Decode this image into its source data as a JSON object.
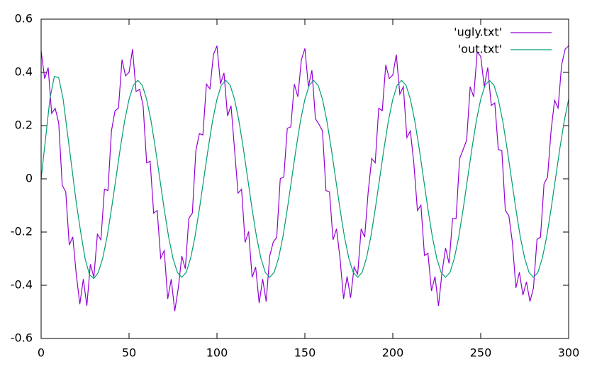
{
  "chart_data": {
    "type": "line",
    "xlim": [
      0,
      300
    ],
    "ylim": [
      -0.6,
      0.6
    ],
    "xticks": [
      0,
      50,
      100,
      150,
      200,
      250,
      300
    ],
    "yticks": [
      -0.6,
      -0.4,
      -0.2,
      0,
      0.2,
      0.4,
      0.6
    ],
    "grid": false,
    "legend": "top-right",
    "series": [
      {
        "name": "'ugly.txt'",
        "color": "#9400d3",
        "x": [
          0,
          2,
          4,
          6,
          8,
          10,
          12,
          14,
          16,
          18,
          20,
          22,
          24,
          26,
          28,
          30,
          32,
          34,
          36,
          38,
          40,
          42,
          44,
          46,
          48,
          50,
          52,
          54,
          56,
          58,
          60,
          62,
          64,
          66,
          68,
          70,
          72,
          74,
          76,
          78,
          80,
          82,
          84,
          86,
          88,
          90,
          92,
          94,
          96,
          98,
          100,
          102,
          104,
          106,
          108,
          110,
          112,
          114,
          116,
          118,
          120,
          122,
          124,
          126,
          128,
          130,
          132,
          134,
          136,
          138,
          140,
          142,
          144,
          146,
          148,
          150,
          152,
          154,
          156,
          158,
          160,
          162,
          164,
          166,
          168,
          170,
          172,
          174,
          176,
          178,
          180,
          182,
          184,
          186,
          188,
          190,
          192,
          194,
          196,
          198,
          200,
          202,
          204,
          206,
          208,
          210,
          212,
          214,
          216,
          218,
          220,
          222,
          224,
          226,
          228,
          230,
          232,
          234,
          236,
          238,
          240,
          242,
          244,
          246,
          248,
          250,
          252,
          254,
          256,
          258,
          260,
          262,
          264,
          266,
          268,
          270,
          272,
          274,
          276,
          278,
          280,
          282,
          284,
          286,
          288,
          290,
          292,
          294,
          296,
          298,
          300
        ],
        "values": [
          0.48,
          0.377,
          0.418,
          0.246,
          0.265,
          0.21,
          -0.024,
          -0.049,
          -0.249,
          -0.218,
          -0.36,
          -0.471,
          -0.377,
          -0.477,
          -0.321,
          -0.37,
          -0.208,
          -0.229,
          -0.039,
          -0.044,
          0.18,
          0.255,
          0.266,
          0.448,
          0.387,
          0.4,
          0.487,
          0.328,
          0.336,
          0.275,
          0.06,
          0.066,
          -0.129,
          -0.119,
          -0.298,
          -0.27,
          -0.451,
          -0.377,
          -0.497,
          -0.411,
          -0.29,
          -0.338,
          -0.149,
          -0.129,
          0.106,
          0.17,
          0.165,
          0.356,
          0.338,
          0.467,
          0.5,
          0.357,
          0.398,
          0.236,
          0.275,
          0.11,
          -0.054,
          -0.039,
          -0.239,
          -0.198,
          -0.37,
          -0.331,
          -0.467,
          -0.377,
          -0.461,
          -0.29,
          -0.238,
          -0.219,
          0.001,
          0.006,
          0.19,
          0.195,
          0.356,
          0.308,
          0.447,
          0.49,
          0.347,
          0.408,
          0.226,
          0.205,
          0.18,
          -0.044,
          -0.049,
          -0.229,
          -0.188,
          -0.3,
          -0.451,
          -0.367,
          -0.447,
          -0.331,
          -0.36,
          -0.188,
          -0.219,
          -0.049,
          0.076,
          0.06,
          0.265,
          0.256,
          0.428,
          0.377,
          0.39,
          0.467,
          0.318,
          0.346,
          0.155,
          0.18,
          0.056,
          -0.119,
          -0.099,
          -0.288,
          -0.28,
          -0.421,
          -0.367,
          -0.477,
          -0.351,
          -0.26,
          -0.318,
          -0.149,
          -0.149,
          0.076,
          0.11,
          0.145,
          0.346,
          0.308,
          0.477,
          0.46,
          0.347,
          0.418,
          0.276,
          0.285,
          0.11,
          0.106,
          -0.119,
          -0.139,
          -0.238,
          -0.41,
          -0.351,
          -0.437,
          -0.387,
          -0.461,
          -0.41,
          -0.228,
          -0.219,
          -0.019,
          0.006,
          0.18,
          0.295,
          0.266,
          0.428,
          0.487,
          0.5
        ]
      },
      {
        "name": "'out.txt'",
        "color": "#009e73",
        "x": [
          0,
          2.5,
          5,
          7.5,
          10,
          12.5,
          15,
          17.5,
          20,
          22.5,
          25,
          27.5,
          30,
          32.5,
          35,
          37.5,
          40,
          42.5,
          45,
          47.5,
          50,
          52.5,
          55,
          57.5,
          60,
          62.5,
          65,
          67.5,
          70,
          72.5,
          75,
          77.5,
          80,
          82.5,
          85,
          87.5,
          90,
          92.5,
          95,
          97.5,
          100,
          102.5,
          105,
          107.5,
          110,
          112.5,
          115,
          117.5,
          120,
          122.5,
          125,
          127.5,
          130,
          132.5,
          135,
          137.5,
          140,
          142.5,
          145,
          147.5,
          150,
          152.5,
          155,
          157.5,
          160,
          162.5,
          165,
          167.5,
          170,
          172.5,
          175,
          177.5,
          180,
          182.5,
          185,
          187.5,
          190,
          192.5,
          195,
          197.5,
          200,
          202.5,
          205,
          207.5,
          210,
          212.5,
          215,
          217.5,
          220,
          222.5,
          225,
          227.5,
          230,
          232.5,
          235,
          237.5,
          240,
          242.5,
          245,
          247.5,
          250,
          252.5,
          255,
          257.5,
          260,
          262.5,
          265,
          267.5,
          270,
          272.5,
          275,
          277.5,
          280,
          282.5,
          285,
          287.5,
          290,
          292.5,
          295,
          297.5,
          300
        ],
        "values": [
          0,
          0.15,
          0.3,
          0.385,
          0.38,
          0.3,
          0.17,
          0.04,
          -0.09,
          -0.2,
          -0.3,
          -0.36,
          -0.375,
          -0.352,
          -0.299,
          -0.218,
          -0.114,
          0,
          0.114,
          0.218,
          0.299,
          0.352,
          0.37,
          0.352,
          0.299,
          0.218,
          0.114,
          0,
          -0.114,
          -0.218,
          -0.299,
          -0.352,
          -0.37,
          -0.352,
          -0.299,
          -0.218,
          -0.114,
          0,
          0.114,
          0.218,
          0.299,
          0.352,
          0.37,
          0.352,
          0.299,
          0.218,
          0.114,
          0,
          -0.114,
          -0.218,
          -0.299,
          -0.352,
          -0.37,
          -0.352,
          -0.299,
          -0.218,
          -0.114,
          0,
          0.114,
          0.218,
          0.299,
          0.352,
          0.37,
          0.352,
          0.299,
          0.218,
          0.114,
          0,
          -0.114,
          -0.218,
          -0.299,
          -0.352,
          -0.37,
          -0.352,
          -0.299,
          -0.218,
          -0.114,
          0,
          0.114,
          0.218,
          0.299,
          0.352,
          0.37,
          0.352,
          0.299,
          0.218,
          0.114,
          0,
          -0.114,
          -0.218,
          -0.299,
          -0.352,
          -0.37,
          -0.352,
          -0.299,
          -0.218,
          -0.114,
          0,
          0.114,
          0.218,
          0.299,
          0.352,
          0.37,
          0.352,
          0.299,
          0.218,
          0.114,
          0,
          -0.114,
          -0.218,
          -0.299,
          -0.352,
          -0.37,
          -0.352,
          -0.299,
          -0.218,
          -0.114,
          0,
          0.114,
          0.218,
          0.299
        ]
      }
    ]
  }
}
